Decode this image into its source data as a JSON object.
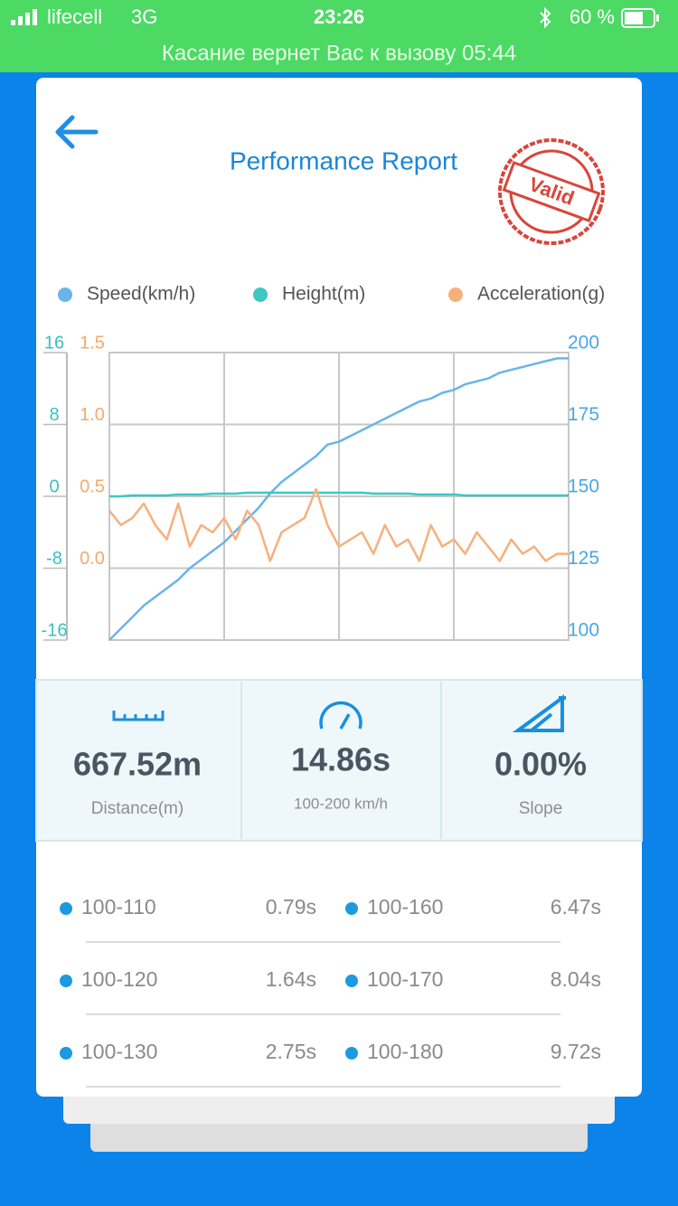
{
  "status_bar": {
    "carrier": "lifecell",
    "network": "3G",
    "time": "23:26",
    "battery": "60 %",
    "call_banner": "Касание вернет Вас к вызову 05:44"
  },
  "header": {
    "title": "Performance Report",
    "stamp": "Valid"
  },
  "chart_data": {
    "type": "line",
    "series": [
      {
        "name": "Speed(km/h)",
        "color": "#6ab4ea",
        "axis": "y2",
        "values": [
          100,
          104,
          108,
          112,
          115,
          118,
          121,
          125,
          128,
          131,
          134,
          138,
          142,
          146,
          151,
          155,
          158,
          161,
          164,
          168,
          169,
          171,
          173,
          175,
          177,
          179,
          181,
          183,
          184,
          186,
          187,
          189,
          190,
          191,
          193,
          194,
          195,
          196,
          197,
          198,
          198
        ]
      },
      {
        "name": "Height(m)",
        "color": "#3fc7c2",
        "values": [
          0,
          0,
          0.1,
          0.1,
          0.1,
          0.1,
          0.2,
          0.2,
          0.2,
          0.3,
          0.3,
          0.3,
          0.4,
          0.4,
          0.4,
          0.4,
          0.4,
          0.4,
          0.4,
          0.4,
          0.4,
          0.4,
          0.4,
          0.3,
          0.3,
          0.3,
          0.3,
          0.2,
          0.2,
          0.2,
          0.2,
          0.1,
          0.1,
          0.1,
          0.1,
          0.1,
          0.1,
          0.1,
          0.1,
          0.1,
          0.1
        ]
      },
      {
        "name": "Acceleration(g)",
        "color": "#f7b07c",
        "axis": "y3",
        "values": [
          0.4,
          0.3,
          0.35,
          0.45,
          0.3,
          0.2,
          0.45,
          0.15,
          0.3,
          0.25,
          0.35,
          0.2,
          0.4,
          0.3,
          0.05,
          0.25,
          0.3,
          0.35,
          0.55,
          0.3,
          0.15,
          0.2,
          0.25,
          0.1,
          0.3,
          0.15,
          0.2,
          0.05,
          0.3,
          0.15,
          0.2,
          0.1,
          0.25,
          0.15,
          0.05,
          0.2,
          0.1,
          0.15,
          0.05,
          0.1,
          0.1
        ]
      }
    ],
    "ylim": [
      -16,
      16
    ],
    "yticks": [
      16,
      8,
      0,
      -8,
      -16
    ],
    "y2lim": [
      100,
      200
    ],
    "y2ticks": [
      200,
      175,
      150,
      125,
      100
    ],
    "y3lim": [
      -0.5,
      1.5
    ],
    "y3ticks": [
      {
        "value": 1.5,
        "label": "1.5"
      },
      {
        "value": 1,
        "label": "1.0"
      },
      {
        "value": 0.5,
        "label": "0.5"
      },
      {
        "value": 0,
        "label": "0.0"
      }
    ],
    "grid": true
  },
  "stats": [
    {
      "value": "667.52m",
      "label": "Distance(m)"
    },
    {
      "value": "14.86s",
      "label": "100-200 km/h"
    },
    {
      "value": "0.00%",
      "label": "Slope"
    }
  ],
  "splits": [
    {
      "range": "100-110",
      "time": "0.79s"
    },
    {
      "range": "100-120",
      "time": "1.64s"
    },
    {
      "range": "100-130",
      "time": "2.75s"
    },
    {
      "range": "100-160",
      "time": "6.47s"
    },
    {
      "range": "100-170",
      "time": "8.04s"
    },
    {
      "range": "100-180",
      "time": "9.72s"
    }
  ]
}
